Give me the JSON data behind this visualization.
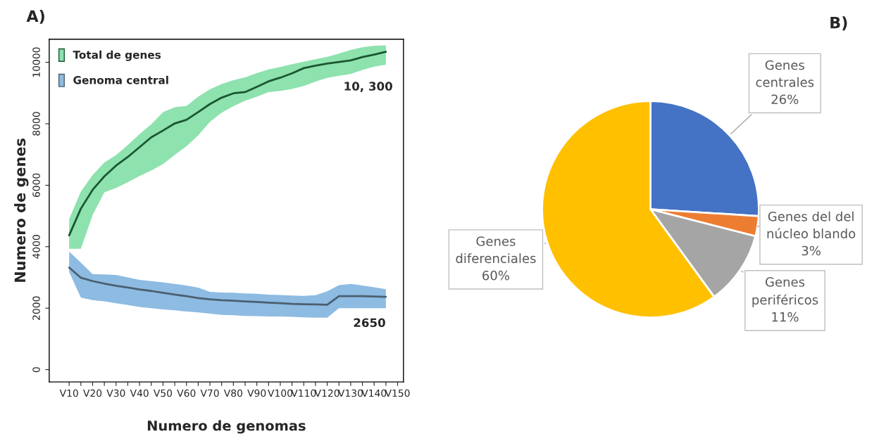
{
  "chart_data": [
    {
      "type": "line",
      "title": "A)",
      "xlabel": "Numero de genomas",
      "ylabel": "Numero de genes",
      "ylim": [
        -400,
        10750
      ],
      "categories": [
        "V10",
        null,
        "V20",
        null,
        "V30",
        null,
        "V40",
        null,
        "V50",
        null,
        "V60",
        null,
        "V70",
        null,
        "V80",
        null,
        "V90",
        null,
        "V100",
        null,
        "V110",
        null,
        "V120",
        null,
        "V130",
        null,
        "V140",
        null,
        "V150"
      ],
      "yticks": [
        0,
        2000,
        4000,
        6000,
        8000,
        10000
      ],
      "grid": false,
      "legend": "top left",
      "marker": "none",
      "line_style": "solid",
      "series": [
        {
          "name": "Total de genes",
          "color": "#1b5632",
          "values": [
            4370,
            5240,
            5850,
            6290,
            6640,
            6920,
            7240,
            7560,
            7780,
            8010,
            8130,
            8380,
            8640,
            8850,
            8990,
            9030,
            9200,
            9380,
            9500,
            9640,
            9810,
            9890,
            9960,
            10010,
            10060,
            10170,
            10250,
            10340,
            null
          ],
          "upper": [
            4900,
            5800,
            6330,
            6740,
            6980,
            7310,
            7660,
            7980,
            8380,
            8540,
            8580,
            8880,
            9120,
            9290,
            9420,
            9510,
            9650,
            9770,
            9850,
            9940,
            10020,
            10100,
            10180,
            10280,
            10400,
            10490,
            10540,
            10550,
            null
          ],
          "lower": [
            3930,
            3930,
            5030,
            5770,
            5910,
            6100,
            6300,
            6480,
            6690,
            6990,
            7270,
            7620,
            8065,
            8360,
            8570,
            8750,
            8880,
            9030,
            9070,
            9130,
            9230,
            9370,
            9490,
            9560,
            9620,
            9750,
            9860,
            9920,
            null
          ]
        },
        {
          "name": "Genoma central",
          "color": "#4c5f6f",
          "values": [
            3320,
            2990,
            2880,
            2800,
            2730,
            2670,
            2610,
            2560,
            2500,
            2440,
            2390,
            2330,
            2290,
            2260,
            2240,
            2220,
            2200,
            2180,
            2160,
            2140,
            2130,
            2120,
            2110,
            2390,
            2390,
            2390,
            2380,
            2370,
            null
          ],
          "upper": [
            3840,
            3480,
            3110,
            3100,
            3080,
            3000,
            2920,
            2880,
            2840,
            2790,
            2740,
            2670,
            2530,
            2510,
            2500,
            2480,
            2470,
            2440,
            2430,
            2410,
            2400,
            2420,
            2550,
            2750,
            2790,
            2740,
            2680,
            2620,
            null
          ],
          "lower": [
            3180,
            2340,
            2260,
            2220,
            2160,
            2100,
            2040,
            2000,
            1960,
            1930,
            1890,
            1860,
            1820,
            1780,
            1770,
            1750,
            1740,
            1730,
            1730,
            1720,
            1700,
            1690,
            1690,
            2000,
            2000,
            2000,
            2000,
            2000,
            null
          ]
        }
      ],
      "annotations": [
        "10, 300",
        "2650"
      ]
    },
    {
      "type": "pie",
      "title": "B)",
      "categories": [
        "Genes\ncentrales",
        "Genes del del\nnúcleo blando",
        "Genes\nperiféricos",
        "Genes\ndiferenciales"
      ],
      "values": [
        26,
        3,
        11,
        60
      ],
      "colors": [
        "#4472c4",
        "#ed7d31",
        "#a5a5a5",
        "#ffc000"
      ],
      "value_labels": [
        "26%",
        "3%",
        "11%",
        "60%"
      ]
    }
  ]
}
